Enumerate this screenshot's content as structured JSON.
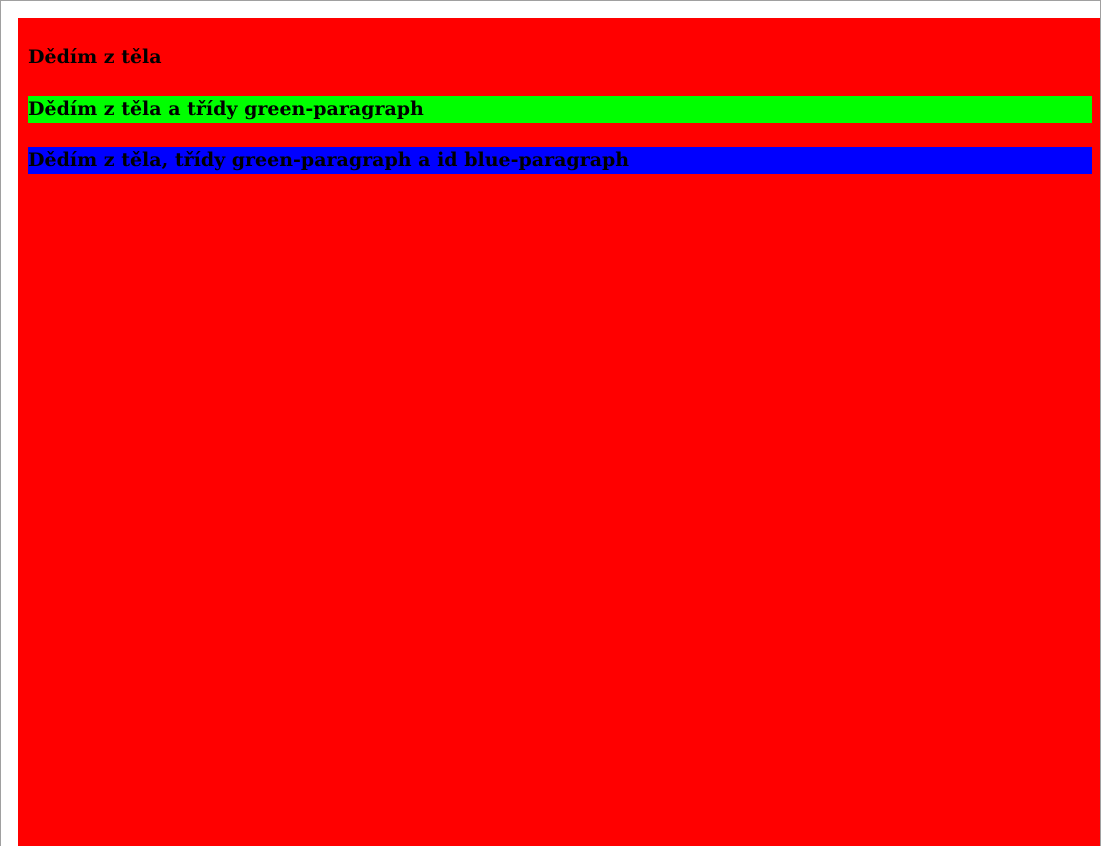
{
  "paragraphs": [
    {
      "text": "Dědím z těla",
      "background": "#ff0000"
    },
    {
      "text": "Dědím z těla a třídy green-paragraph",
      "background": "#00ff00"
    },
    {
      "text": "Dědím z těla, třídy green-paragraph a id blue-paragraph",
      "background": "#0000ff"
    }
  ],
  "body_background": "#ff0000"
}
